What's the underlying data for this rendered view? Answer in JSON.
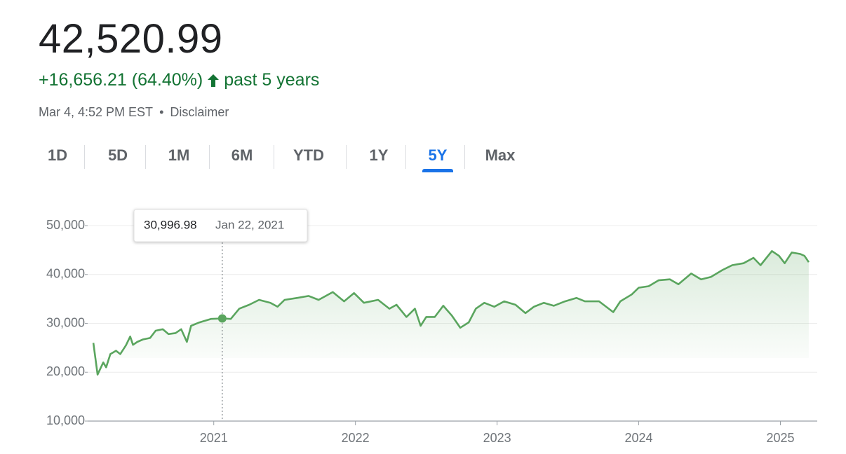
{
  "header": {
    "price": "42,520.99",
    "change": "+16,656.21 (64.40%)",
    "period": "past 5 years",
    "timestamp": "Mar 4, 4:52 PM EST",
    "separator": "•",
    "disclaimer": "Disclaimer"
  },
  "ranges": {
    "options": [
      "1D",
      "5D",
      "1M",
      "6M",
      "YTD",
      "1Y",
      "5Y",
      "Max"
    ],
    "selected": 6
  },
  "chart_data": {
    "type": "line",
    "color": "#5aa55e",
    "x": [
      2020.15,
      2020.18,
      2020.22,
      2020.24,
      2020.27,
      2020.31,
      2020.34,
      2020.38,
      2020.41,
      2020.43,
      2020.46,
      2020.5,
      2020.55,
      2020.59,
      2020.64,
      2020.68,
      2020.73,
      2020.77,
      2020.81,
      2020.84,
      2020.9,
      2020.98,
      2021.06,
      2021.12,
      2021.18,
      2021.25,
      2021.32,
      2021.4,
      2021.45,
      2021.5,
      2021.59,
      2021.67,
      2021.74,
      2021.84,
      2021.92,
      2021.99,
      2022.06,
      2022.16,
      2022.24,
      2022.29,
      2022.36,
      2022.42,
      2022.46,
      2022.5,
      2022.56,
      2022.62,
      2022.68,
      2022.74,
      2022.8,
      2022.85,
      2022.91,
      2022.98,
      2023.05,
      2023.13,
      2023.2,
      2023.26,
      2023.33,
      2023.4,
      2023.48,
      2023.56,
      2023.62,
      2023.72,
      2023.82,
      2023.87,
      2023.95,
      2024.0,
      2024.07,
      2024.14,
      2024.22,
      2024.28,
      2024.37,
      2024.44,
      2024.51,
      2024.59,
      2024.66,
      2024.74,
      2024.81,
      2024.86,
      2024.94,
      2024.99,
      2025.03,
      2025.08,
      2025.14,
      2025.17,
      2025.2
    ],
    "values": [
      26000,
      19500,
      22000,
      21000,
      23700,
      24400,
      23700,
      25500,
      27300,
      25600,
      26200,
      26700,
      27000,
      28500,
      28800,
      27800,
      28000,
      28800,
      26200,
      29500,
      30200,
      30900,
      30996.98,
      30900,
      33000,
      33800,
      34800,
      34200,
      33400,
      34800,
      35200,
      35600,
      34800,
      36400,
      34500,
      36200,
      34200,
      34800,
      33000,
      33800,
      31300,
      33000,
      29500,
      31300,
      31300,
      33600,
      31600,
      29100,
      30200,
      33000,
      34200,
      33400,
      34500,
      33800,
      32100,
      33400,
      34200,
      33600,
      34500,
      35200,
      34500,
      34500,
      32300,
      34500,
      35900,
      37300,
      37600,
      38800,
      39000,
      38000,
      40200,
      39000,
      39500,
      40900,
      41900,
      42300,
      43400,
      41900,
      44800,
      43800,
      42300,
      44500,
      44200,
      43800,
      42520.99
    ],
    "xlim": [
      2020.11,
      2025.26
    ],
    "xticks": [
      2021,
      2022,
      2023,
      2024,
      2025
    ],
    "ylim": [
      10000,
      50000
    ],
    "yticks": [
      {
        "value": 10000,
        "label": "10,000"
      },
      {
        "value": 20000,
        "label": "20,000"
      },
      {
        "value": 30000,
        "label": "30,000"
      },
      {
        "value": 40000,
        "label": "40,000"
      },
      {
        "value": 50000,
        "label": "50,000"
      }
    ],
    "grid": true,
    "tooltip": {
      "x": 2021.06,
      "value": 30996.98,
      "label": "30,996.98",
      "date": "Jan 22, 2021"
    }
  }
}
